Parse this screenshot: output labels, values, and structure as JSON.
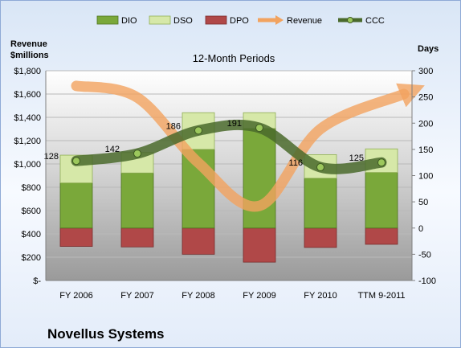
{
  "chart_data": {
    "type": "bar",
    "title": "12-Month Periods",
    "footer": "Novellus Systems",
    "left_axis": {
      "label_line1": "Revenue",
      "label_line2": "$millions",
      "ticks": [
        "$-",
        "$200",
        "$400",
        "$600",
        "$800",
        "$1,000",
        "$1,200",
        "$1,400",
        "$1,600",
        "$1,800"
      ],
      "ylim": [
        0,
        1800
      ]
    },
    "right_axis": {
      "label": "Days",
      "ticks": [
        "-100",
        "-50",
        "0",
        "50",
        "100",
        "150",
        "200",
        "250",
        "300"
      ],
      "ylim": [
        -100,
        300
      ]
    },
    "categories": [
      "FY 2006",
      "FY 2007",
      "FY 2008",
      "FY 2009",
      "FY 2010",
      "TTM 9-2011"
    ],
    "legend": [
      "DIO",
      "DSO",
      "DPO",
      "Revenue",
      "CCC"
    ],
    "series": [
      {
        "name": "DIO",
        "axis": "right",
        "values": [
          86,
          105,
          150,
          190,
          95,
          106
        ]
      },
      {
        "name": "DSO",
        "axis": "right",
        "values": [
          53,
          39,
          70,
          30,
          45,
          45
        ]
      },
      {
        "name": "DPO",
        "axis": "right",
        "values": [
          -35,
          -36,
          -50,
          -65,
          -37,
          -31
        ]
      },
      {
        "name": "Revenue",
        "axis": "left",
        "values": [
          1670,
          1570,
          1010,
          640,
          1300,
          1600
        ]
      },
      {
        "name": "CCC",
        "axis": "right",
        "values": [
          128,
          142,
          186,
          191,
          116,
          125
        ]
      }
    ],
    "ccc_labels": [
      "128",
      "142",
      "186",
      "191",
      "116",
      "125"
    ],
    "colors": {
      "dio": "#7aa83a",
      "dso": "#d6e8a8",
      "dpo": "#b04848",
      "revenue": "#f2a35f",
      "ccc": "#4a6a2c"
    }
  }
}
